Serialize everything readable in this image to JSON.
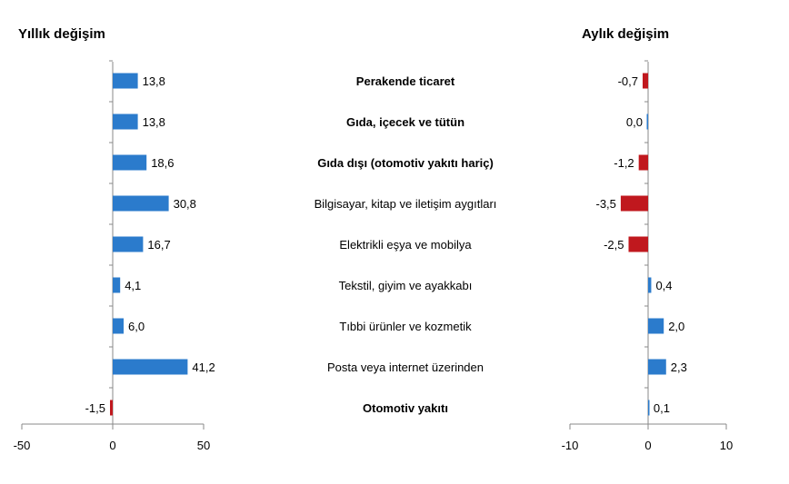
{
  "chart_data": [
    {
      "type": "bar",
      "orientation": "horizontal",
      "title": "Yıllık değişim",
      "categories": [
        "Perakende ticaret",
        "Gıda, içecek ve tütün",
        "Gıda dışı (otomotiv yakıtı hariç)",
        "Bilgisayar, kitap ve iletişim aygıtları",
        "Elektrikli eşya ve mobilya",
        "Tekstil, giyim ve ayakkabı",
        "Tıbbi ürünler ve kozmetik",
        "Posta veya internet üzerinden",
        "Otomotiv yakıtı"
      ],
      "bold_categories": [
        0,
        1,
        2,
        8
      ],
      "values": [
        13.8,
        13.8,
        18.6,
        30.8,
        16.7,
        4.1,
        6.0,
        41.2,
        -1.5
      ],
      "value_labels": [
        "13,8",
        "13,8",
        "18,6",
        "30,8",
        "16,7",
        "4,1",
        "6,0",
        "41,2",
        "-1,5"
      ],
      "xlim": [
        -50,
        50
      ],
      "xticks": [
        -50,
        0,
        50
      ],
      "xtick_labels": [
        "-50",
        "0",
        "50"
      ],
      "grid": false
    },
    {
      "type": "bar",
      "orientation": "horizontal",
      "title": "Aylık değişim",
      "categories": [
        "Perakende ticaret",
        "Gıda, içecek ve tütün",
        "Gıda dışı (otomotiv yakıtı hariç)",
        "Bilgisayar, kitap ve iletişim aygıtları",
        "Elektrikli eşya ve mobilya",
        "Tekstil, giyim ve ayakkabı",
        "Tıbbi ürünler ve kozmetik",
        "Posta veya internet üzerinden",
        "Otomotiv yakıtı"
      ],
      "values": [
        -0.7,
        0.0,
        -1.2,
        -3.5,
        -2.5,
        0.4,
        2.0,
        2.3,
        0.1
      ],
      "value_labels": [
        "-0,7",
        "0,0",
        "-1,2",
        "-3,5",
        "-2,5",
        "0,4",
        "2,0",
        "2,3",
        "0,1"
      ],
      "xlim": [
        -10,
        10
      ],
      "xticks": [
        -10,
        0,
        10
      ],
      "xtick_labels": [
        "-10",
        "0",
        "10"
      ],
      "grid": false
    }
  ],
  "colors": {
    "positive": "#2b7bcc",
    "negative": "#c0181e",
    "axis": "#888888",
    "text": "#000000"
  }
}
